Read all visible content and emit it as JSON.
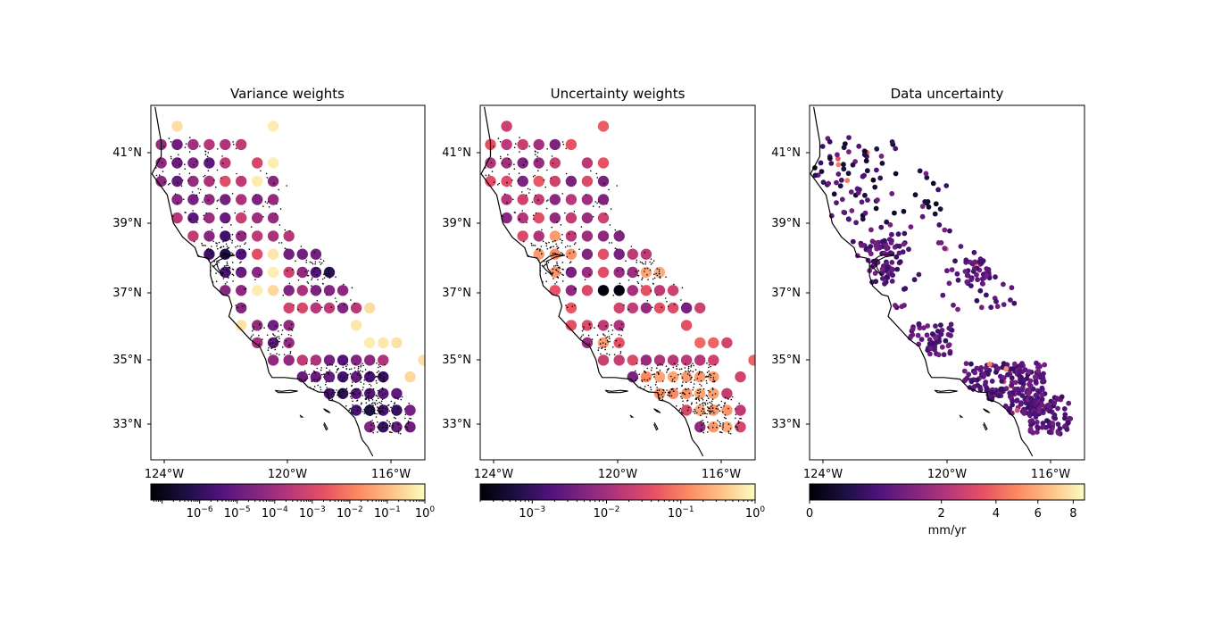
{
  "figure": {
    "panels": [
      {
        "title": "Variance weights",
        "colorbar_ticks": [
          "10",
          "10",
          "10",
          "10",
          "10",
          "10",
          "10"
        ],
        "colorbar_exps": [
          "−6",
          "−5",
          "−4",
          "−3",
          "−2",
          "−1",
          "0"
        ],
        "colorbar_label": ""
      },
      {
        "title": "Uncertainty weights",
        "colorbar_ticks": [
          "10",
          "10",
          "10",
          "10"
        ],
        "colorbar_exps": [
          "−3",
          "−2",
          "−1",
          "0"
        ],
        "colorbar_label": ""
      },
      {
        "title": "Data uncertainty",
        "colorbar_ticks": [
          "0",
          "2",
          "4",
          "6",
          "8"
        ],
        "colorbar_exps": [],
        "colorbar_label": "mm/yr"
      }
    ],
    "lat_ticks": [
      "41°N",
      "39°N",
      "37°N",
      "35°N",
      "33°N"
    ],
    "lon_ticks": [
      "124°W",
      "120°W",
      "116°W"
    ],
    "colormap": "magma"
  },
  "chart_data": [
    {
      "type": "scatter",
      "title": "Variance weights",
      "xlabel": "",
      "ylabel": "",
      "xlim": [
        -124.8,
        -114.4
      ],
      "ylim": [
        32.0,
        42.3
      ],
      "x_ticks": [
        -124,
        -120,
        -116
      ],
      "y_ticks": [
        41,
        39,
        37,
        35,
        33
      ],
      "color_scale": "log",
      "color_range": [
        1e-07,
        1
      ],
      "marker": "large circles on ~0.5° grid",
      "note_values": "per-cell weights spanning 1e-7 to 1; coastal and dense regions low (purple), sparse interior high (pale yellow)"
    },
    {
      "type": "scatter",
      "title": "Uncertainty weights",
      "xlabel": "",
      "ylabel": "",
      "xlim": [
        -124.8,
        -114.4
      ],
      "ylim": [
        32.0,
        42.3
      ],
      "x_ticks": [
        -124,
        -120,
        -116
      ],
      "y_ticks": [
        41,
        39,
        37,
        35,
        33
      ],
      "color_scale": "log",
      "color_range": [
        0.0002,
        1
      ],
      "marker": "large circles on ~0.5° grid"
    },
    {
      "type": "scatter",
      "title": "Data uncertainty",
      "xlabel": "",
      "ylabel": "",
      "xlim": [
        -124.8,
        -114.4
      ],
      "ylim": [
        32.0,
        42.3
      ],
      "x_ticks": [
        -124,
        -120,
        -116
      ],
      "y_ticks": [
        41,
        39,
        37,
        35,
        33
      ],
      "color_scale": "power",
      "color_range": [
        0,
        8.7
      ],
      "colorbar_label": "mm/yr",
      "marker": "small dots at GNSS stations"
    }
  ]
}
